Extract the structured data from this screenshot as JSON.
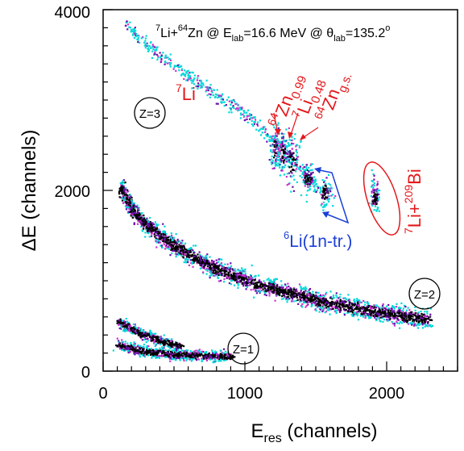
{
  "chart_data": {
    "type": "heatmap",
    "title": {
      "proj": "7",
      "proj_sym": "Li+",
      "targ": "64",
      "targ_sym": "Zn",
      "e_pre": " @ E",
      "e_sub": "lab",
      "e_val": "=16.6 MeV @ θ",
      "t_sub": "lab",
      "t_val": "=135.2",
      "t_deg": "o"
    },
    "xlabel": {
      "main": "E",
      "sub": "res",
      "unit": " (channels)"
    },
    "ylabel": "ΔE (channels)",
    "xlim": [
      0,
      2500
    ],
    "ylim": [
      0,
      4000
    ],
    "x_ticks": [
      {
        "value": 0,
        "label": "0"
      },
      {
        "value": 1000,
        "label": "1000"
      },
      {
        "value": 2000,
        "label": "2000"
      }
    ],
    "y_ticks": [
      {
        "value": 0,
        "label": "0"
      },
      {
        "value": 2000,
        "label": "2000"
      },
      {
        "value": 4000,
        "label": "4000"
      }
    ],
    "grid": false,
    "colors": {
      "dense": "#000000",
      "mid": "#6a0dad",
      "magenta": "#cc33cc",
      "cyan": "#00d8d8",
      "annotation_red": "#e4181c",
      "annotation_blue": "#1a3fd6"
    },
    "bands": [
      {
        "name": "z3-lithium",
        "points": [
          [
            150,
            3850
          ],
          [
            400,
            3500
          ],
          [
            700,
            3150
          ],
          [
            1000,
            2850
          ],
          [
            1200,
            2550
          ],
          [
            1350,
            2300
          ],
          [
            1500,
            2050
          ]
        ],
        "width": 70,
        "density": 0.25
      },
      {
        "name": "z2-helium",
        "points": [
          [
            120,
            2050
          ],
          [
            200,
            1800
          ],
          [
            300,
            1620
          ],
          [
            500,
            1390
          ],
          [
            700,
            1210
          ],
          [
            900,
            1070
          ],
          [
            1100,
            960
          ],
          [
            1300,
            880
          ],
          [
            1500,
            790
          ],
          [
            1700,
            730
          ],
          [
            1900,
            670
          ],
          [
            2100,
            620
          ],
          [
            2300,
            580
          ]
        ],
        "width": 95,
        "density": 1.0
      },
      {
        "name": "z1-hydrogen-upper",
        "points": [
          [
            100,
            560
          ],
          [
            250,
            430
          ],
          [
            400,
            340
          ],
          [
            550,
            280
          ]
        ],
        "width": 55,
        "density": 0.9
      },
      {
        "name": "z1-hydrogen-lower",
        "points": [
          [
            100,
            300
          ],
          [
            300,
            220
          ],
          [
            500,
            190
          ],
          [
            700,
            180
          ],
          [
            900,
            170
          ]
        ],
        "width": 55,
        "density": 0.9
      }
    ],
    "clusters": [
      {
        "name": "64zn-0.99",
        "x": 1210,
        "y": 2450,
        "sx": 18,
        "sy": 120
      },
      {
        "name": "7li-0.48",
        "x": 1260,
        "y": 2420,
        "sx": 18,
        "sy": 120
      },
      {
        "name": "64zn-gs",
        "x": 1330,
        "y": 2330,
        "sx": 25,
        "sy": 140
      },
      {
        "name": "6li-1",
        "x": 1440,
        "y": 2150,
        "sx": 30,
        "sy": 80
      },
      {
        "name": "6li-2",
        "x": 1560,
        "y": 1980,
        "sx": 25,
        "sy": 80
      },
      {
        "name": "7li-209bi",
        "x": 1910,
        "y": 1950,
        "sx": 18,
        "sy": 100
      }
    ],
    "annotations": {
      "li7": {
        "sup": "7",
        "text": "Li"
      },
      "zn64_099": {
        "sup": "64",
        "text": "Zn",
        "sub": "0.99"
      },
      "li7_048": {
        "sup": "7",
        "text": "Li",
        "sub": "0.48"
      },
      "zn64_gs": {
        "sup": "64",
        "text": "Zn",
        "sub": "g.s."
      },
      "li6": {
        "sup": "6",
        "text": "Li(1n-tr.)"
      },
      "li7bi": {
        "sup1": "7",
        "t1": "Li+",
        "sup2": "209",
        "t2": "Bi"
      },
      "z3": "Z=3",
      "z2": "Z=2",
      "z1": "Z=1"
    }
  }
}
